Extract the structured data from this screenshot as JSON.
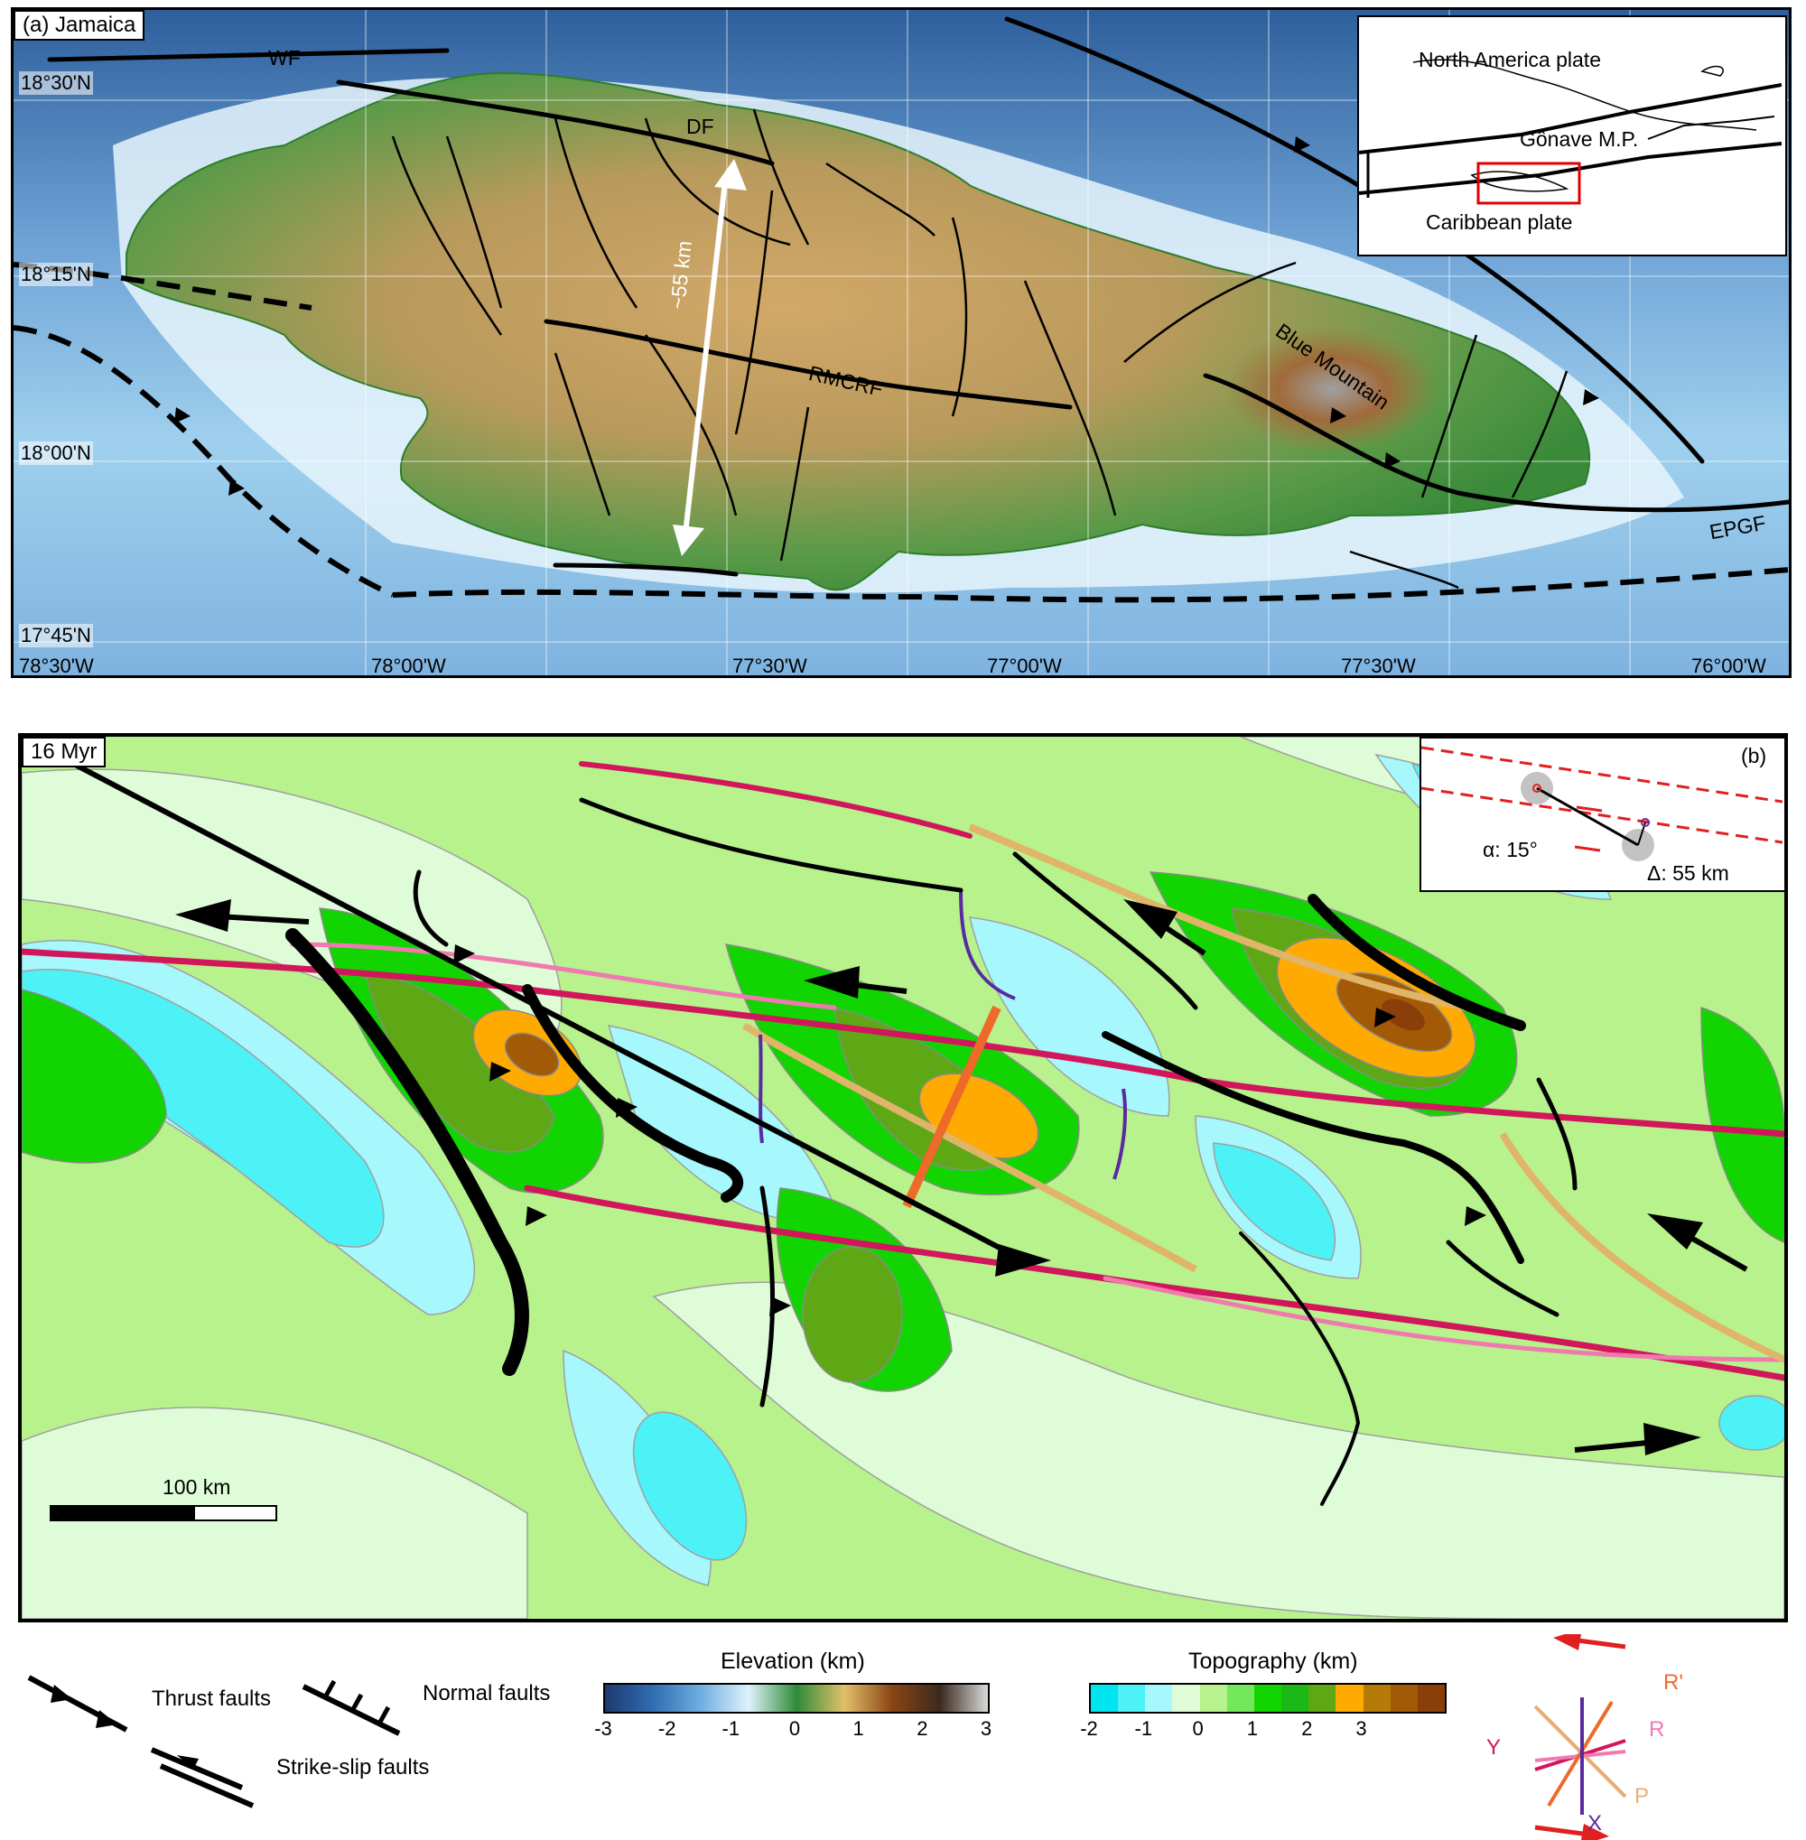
{
  "panel_a": {
    "label": "(a)  Jamaica",
    "faults": {
      "wf": "WF",
      "df": "DF",
      "rmcrf": "RMCRF",
      "epgf": "EPGF"
    },
    "blue_mountain": "Blue Mountain",
    "distance_label": "~55 km",
    "lat_labels": [
      "18°30'N",
      "18°15'N",
      "18°00'N",
      "17°45'N"
    ],
    "lon_labels": [
      "78°30'W",
      "78°00'W",
      "77°30'W",
      "77°00'W",
      "77°30'W",
      "76°00'W"
    ],
    "inset": {
      "north_america": "North America plate",
      "gonave": "Gônave M.P.",
      "caribbean": "Caribbean plate"
    }
  },
  "panel_b": {
    "label": "16 Myr",
    "panel_letter": "(b)",
    "alpha": "α: 15°",
    "delta": "Δ: 55 km",
    "scale_label": "100 km"
  },
  "legend": {
    "thrust": "Thrust faults",
    "normal": "Normal faults",
    "strike_slip": "Strike-slip faults",
    "elevation_title": "Elevation (km)",
    "elevation_ticks": [
      "-3",
      "-2",
      "-1",
      "0",
      "1",
      "2",
      "3"
    ],
    "elevation_colors": [
      "#1e3a6e",
      "#2f6db3",
      "#6faee0",
      "#dff2fb",
      "#2e8b3a",
      "#e2c06a",
      "#8a4514",
      "#3b2a1e",
      "#d9d9d9"
    ],
    "topography_title": "Topography (km)",
    "topography_ticks": [
      "-2",
      "-1",
      "0",
      "1",
      "2",
      "3"
    ],
    "topography_colors": [
      "#00e5f0",
      "#4df2f7",
      "#a6f8fc",
      "#dffcd8",
      "#b7f28d",
      "#73e85a",
      "#12d400",
      "#1cb818",
      "#5da814",
      "#ffaa00",
      "#b57a07",
      "#a35a07",
      "#8a3e0a"
    ],
    "riedel": {
      "r_prime": "R'",
      "r": "R",
      "y": "Y",
      "p": "P",
      "x": "X"
    }
  }
}
